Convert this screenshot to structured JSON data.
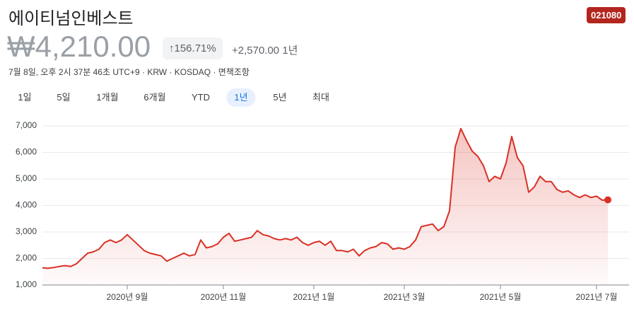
{
  "header": {
    "title": "에이티넘인베스트",
    "ticker": "021080",
    "price": "₩4,210.00",
    "change_percent": "↑156.71%",
    "change_value": "+2,570.00",
    "change_period": "1년",
    "meta": "7월 8일, 오후 2시 37분 46초 UTC+9 · KRW · KOSDAQ · 면책조항"
  },
  "tabs": {
    "items": [
      "1일",
      "5일",
      "1개월",
      "6개월",
      "YTD",
      "1년",
      "5년",
      "최대"
    ],
    "selected": 5
  },
  "chart_data": {
    "type": "line",
    "color": "#d93025",
    "grid": true,
    "categories": [
      null,
      null,
      null,
      null,
      null,
      null,
      null,
      null,
      null,
      null,
      null,
      null,
      null,
      null,
      null,
      "2020년 9월",
      null,
      null,
      null,
      null,
      null,
      null,
      null,
      null,
      null,
      null,
      null,
      null,
      null,
      null,
      null,
      null,
      "2020년 11월",
      null,
      null,
      null,
      null,
      null,
      null,
      null,
      null,
      null,
      null,
      null,
      null,
      null,
      null,
      null,
      "2021년 1월",
      null,
      null,
      null,
      null,
      null,
      null,
      null,
      null,
      null,
      null,
      null,
      null,
      null,
      null,
      null,
      "2021년 3월",
      null,
      null,
      null,
      null,
      null,
      null,
      null,
      null,
      null,
      null,
      null,
      null,
      null,
      null,
      null,
      null,
      "2021년 5월",
      null,
      null,
      null,
      null,
      null,
      null,
      null,
      null,
      null,
      null,
      null,
      null,
      null,
      null,
      null,
      null,
      "2021년 7월",
      null,
      null
    ],
    "values": [
      1650,
      1630,
      1660,
      1700,
      1730,
      1700,
      1800,
      2000,
      2200,
      2250,
      2350,
      2600,
      2700,
      2600,
      2700,
      2900,
      2700,
      2500,
      2300,
      2200,
      2150,
      2100,
      1900,
      2000,
      2100,
      2200,
      2100,
      2150,
      2700,
      2400,
      2450,
      2550,
      2800,
      2950,
      2650,
      2700,
      2750,
      2800,
      3050,
      2900,
      2850,
      2750,
      2700,
      2750,
      2700,
      2800,
      2600,
      2500,
      2600,
      2650,
      2500,
      2650,
      2300,
      2300,
      2250,
      2350,
      2100,
      2300,
      2400,
      2450,
      2600,
      2550,
      2350,
      2400,
      2350,
      2450,
      2700,
      3200,
      3250,
      3300,
      3050,
      3200,
      3800,
      6200,
      6900,
      6450,
      6050,
      5850,
      5500,
      4900,
      5100,
      5000,
      5600,
      6600,
      5800,
      5500,
      4500,
      4700,
      5100,
      4900,
      4900,
      4600,
      4500,
      4550,
      4400,
      4300,
      4400,
      4300,
      4350,
      4200,
      4210
    ],
    "ylim": [
      1000,
      7000
    ],
    "yticks": [
      {
        "value": 1000,
        "label": "1,000"
      },
      {
        "value": 2000,
        "label": "2,000"
      },
      {
        "value": 3000,
        "label": "3,000"
      },
      {
        "value": 4000,
        "label": "4,000"
      },
      {
        "value": 5000,
        "label": "5,000"
      },
      {
        "value": 6000,
        "label": "6,000"
      },
      {
        "value": 7000,
        "label": "7,000"
      }
    ]
  }
}
